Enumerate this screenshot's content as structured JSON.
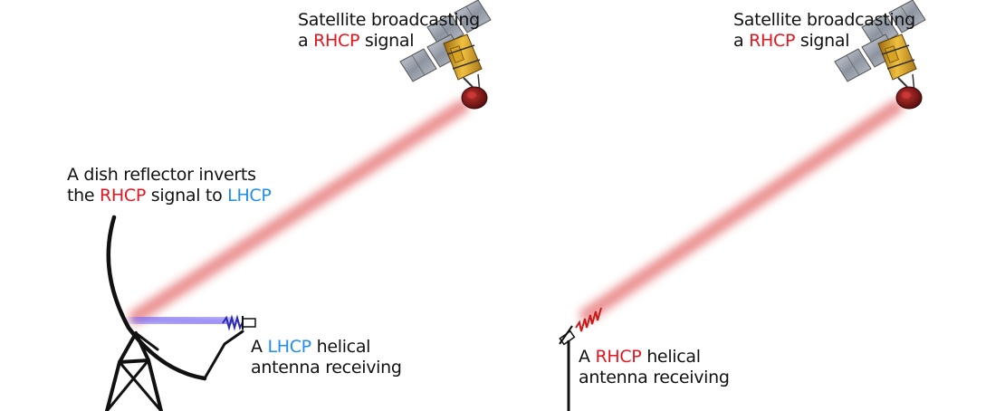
{
  "left_panel": {
    "satellite_caption": {
      "line1": "Satellite broadcasting",
      "line2_prefix": "a ",
      "line2_hl": "RHCP",
      "line2_suffix": " signal"
    },
    "dish_caption": {
      "line1": "A dish reflector inverts",
      "line2_prefix": "the ",
      "line2_hl1": "RHCP",
      "line2_mid": " signal to ",
      "line2_hl2": "LHCP"
    },
    "antenna_caption": {
      "line1_prefix": "A ",
      "line1_hl": "LHCP",
      "line1_suffix": " helical",
      "line2": "antenna receiving"
    }
  },
  "right_panel": {
    "satellite_caption": {
      "line1": "Satellite broadcasting",
      "line2_prefix": "a ",
      "line2_hl": "RHCP",
      "line2_suffix": " signal"
    },
    "antenna_caption": {
      "line1_prefix": "A ",
      "line1_hl": "RHCP",
      "line1_suffix": " helical",
      "line2": "antenna receiving"
    }
  },
  "colors": {
    "rhcp": "#e8141e",
    "lhcp": "#1e8ef0",
    "rhcp_beam": "#e88080",
    "lhcp_beam": "#7c6cf0",
    "lhcp_helix": "#2a2ab0",
    "rhcp_helix": "#c81818"
  }
}
